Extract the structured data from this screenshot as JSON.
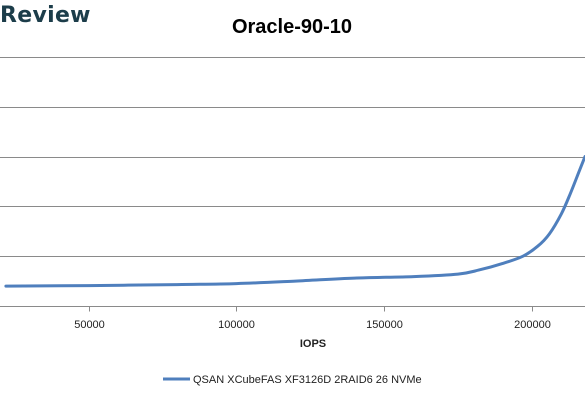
{
  "header": {
    "brand_text": "Review"
  },
  "chart_data": {
    "type": "line",
    "title": "Oracle-90-10",
    "xlabel": "IOPS",
    "ylabel": "",
    "xlim": [
      20000,
      218000
    ],
    "ylim": [
      0,
      6
    ],
    "grid": true,
    "legend_position": "bottom",
    "x_ticks": [
      50000,
      100000,
      150000,
      200000
    ],
    "x_tick_labels": [
      "50000",
      "100000",
      "150000",
      "200000"
    ],
    "line_color": "#4f7fbd",
    "series": [
      {
        "name": "QSAN XCubeFAS XF3126D 2RAID6 26 NVMe",
        "x": [
          22000,
          50000,
          80000,
          100000,
          120000,
          140000,
          160000,
          175000,
          182000,
          190000,
          197000,
          202000,
          206000,
          210000,
          213000,
          216000,
          218000
        ],
        "y": [
          0.4,
          0.41,
          0.43,
          0.45,
          0.5,
          0.56,
          0.59,
          0.64,
          0.72,
          0.85,
          1.0,
          1.2,
          1.45,
          1.85,
          2.25,
          2.7,
          3.0
        ]
      }
    ]
  }
}
